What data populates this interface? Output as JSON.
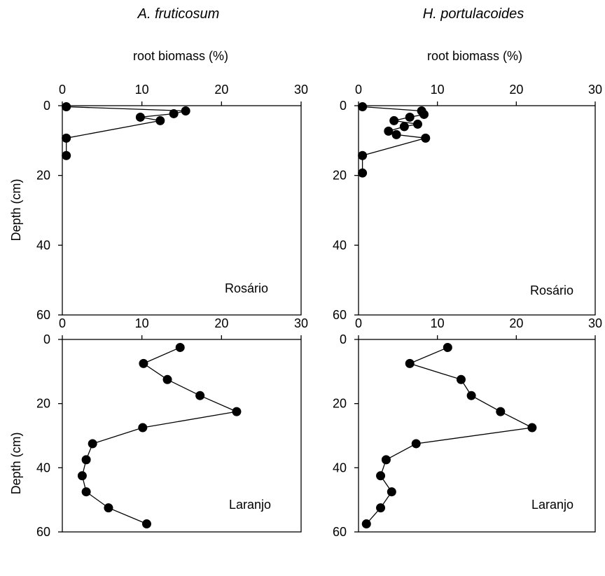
{
  "figure": {
    "column_titles": [
      "A. fruticosum",
      "H. portulacoides"
    ],
    "top_axis_label": "root biomass (%)",
    "y_axis_label": "Depth (cm)"
  },
  "chart_data": [
    {
      "type": "line",
      "species": "A. fruticosum",
      "site": "Rosário",
      "xlabel": "root biomass (%)",
      "ylabel": "Depth (cm)",
      "xlim": [
        0,
        30
      ],
      "ylim": [
        0,
        60
      ],
      "y_inverted": true,
      "x_ticks": [
        0,
        10,
        20,
        30
      ],
      "y_ticks": [
        0,
        20,
        40,
        60
      ],
      "series": [
        {
          "x": [
            0.5,
            15.5,
            14.0,
            9.8,
            12.3,
            0.5,
            0.5
          ],
          "y": [
            0.3,
            1.5,
            2.3,
            3.3,
            4.3,
            9.3,
            14.3
          ]
        }
      ]
    },
    {
      "type": "line",
      "species": "H. portulacoides",
      "site": "Rosário",
      "xlabel": "root biomass (%)",
      "ylabel": "Depth (cm)",
      "xlim": [
        0,
        30
      ],
      "ylim": [
        0,
        60
      ],
      "y_inverted": true,
      "x_ticks": [
        0,
        10,
        20,
        30
      ],
      "y_ticks": [
        0,
        20,
        40,
        60
      ],
      "series": [
        {
          "x": [
            0.5,
            8.0,
            8.3,
            6.5,
            4.5,
            7.5,
            5.8,
            3.8,
            4.8,
            8.5,
            0.5,
            0.5
          ],
          "y": [
            0.3,
            1.5,
            2.5,
            3.3,
            4.3,
            5.3,
            6.0,
            7.3,
            8.3,
            9.3,
            14.3,
            19.3
          ]
        }
      ]
    },
    {
      "type": "line",
      "species": "A. fruticosum",
      "site": "Laranjo",
      "xlabel": "",
      "ylabel": "Depth (cm)",
      "xlim": [
        0,
        30
      ],
      "ylim": [
        0,
        60
      ],
      "y_inverted": true,
      "x_ticks": [
        0,
        10,
        20,
        30
      ],
      "y_ticks": [
        0,
        20,
        40,
        60
      ],
      "series": [
        {
          "x": [
            14.8,
            10.2,
            13.2,
            17.3,
            21.9,
            10.1,
            3.8,
            3.0,
            2.5,
            3.0,
            5.8,
            10.6
          ],
          "y": [
            2.5,
            7.5,
            12.5,
            17.5,
            22.5,
            27.5,
            32.5,
            37.5,
            42.5,
            47.5,
            52.5,
            57.5
          ]
        }
      ]
    },
    {
      "type": "line",
      "species": "H. portulacoides",
      "site": "Laranjo",
      "xlabel": "",
      "ylabel": "Depth (cm)",
      "xlim": [
        0,
        30
      ],
      "ylim": [
        0,
        60
      ],
      "y_inverted": true,
      "x_ticks": [
        0,
        10,
        20,
        30
      ],
      "y_ticks": [
        0,
        20,
        40,
        60
      ],
      "series": [
        {
          "x": [
            11.3,
            6.5,
            13.0,
            14.3,
            18.0,
            22.0,
            7.3,
            3.5,
            2.8,
            4.2,
            2.8,
            1.0
          ],
          "y": [
            2.5,
            7.5,
            12.5,
            17.5,
            22.5,
            27.5,
            32.5,
            37.5,
            42.5,
            47.5,
            52.5,
            57.5
          ]
        }
      ]
    }
  ]
}
